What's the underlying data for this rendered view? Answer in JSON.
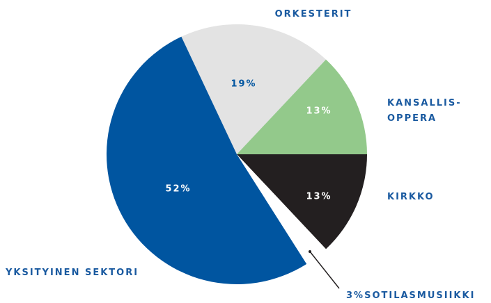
{
  "chart_data": {
    "type": "pie",
    "categories": [
      [
        "ORKESTERIT"
      ],
      [
        "KANSALLIS-",
        "OPPERA"
      ],
      [
        "KIRKKO"
      ],
      [
        "SOTILASMUSIIKKI"
      ],
      [
        "YKSITYINEN SEKTORI"
      ]
    ],
    "values": [
      19,
      13,
      13,
      3,
      52
    ],
    "value_labels": [
      "19%",
      "13%",
      "13%",
      "3%",
      "52%"
    ],
    "colors": [
      "#e3e3e3",
      "#93c98b",
      "#231f20",
      "#ffffff",
      "#0055a0"
    ]
  }
}
